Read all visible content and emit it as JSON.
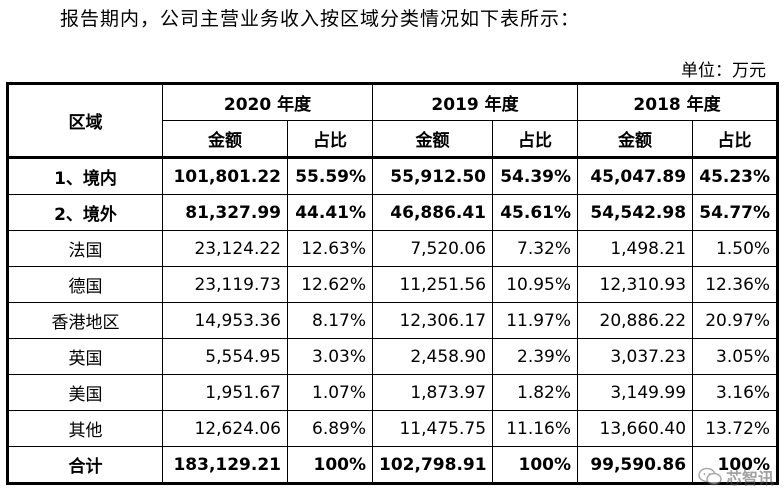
{
  "intro": "报告期内，公司主营业务收入按区域分类情况如下表所示：",
  "unit": "单位：万元",
  "table": {
    "region_header": "区域",
    "years": [
      "2020 年度",
      "2019 年度",
      "2018 年度"
    ],
    "sub_headers": {
      "amount": "金额",
      "ratio": "占比"
    },
    "rows": [
      {
        "region": "1、境内",
        "bold": true,
        "values": [
          "101,801.22",
          "55.59%",
          "55,912.50",
          "54.39%",
          "45,047.89",
          "45.23%"
        ]
      },
      {
        "region": "2、境外",
        "bold": true,
        "values": [
          "81,327.99",
          "44.41%",
          "46,886.41",
          "45.61%",
          "54,542.98",
          "54.77%"
        ]
      },
      {
        "region": "法国",
        "bold": false,
        "values": [
          "23,124.22",
          "12.63%",
          "7,520.06",
          "7.32%",
          "1,498.21",
          "1.50%"
        ]
      },
      {
        "region": "德国",
        "bold": false,
        "values": [
          "23,119.73",
          "12.62%",
          "11,251.56",
          "10.95%",
          "12,310.93",
          "12.36%"
        ]
      },
      {
        "region": "香港地区",
        "bold": false,
        "values": [
          "14,953.36",
          "8.17%",
          "12,306.17",
          "11.97%",
          "20,886.22",
          "20.97%"
        ]
      },
      {
        "region": "英国",
        "bold": false,
        "values": [
          "5,554.95",
          "3.03%",
          "2,458.90",
          "2.39%",
          "3,037.23",
          "3.05%"
        ]
      },
      {
        "region": "美国",
        "bold": false,
        "values": [
          "1,951.67",
          "1.07%",
          "1,873.97",
          "1.82%",
          "3,149.99",
          "3.16%"
        ]
      },
      {
        "region": "其他",
        "bold": false,
        "values": [
          "12,624.06",
          "6.89%",
          "11,475.75",
          "11.16%",
          "13,660.40",
          "13.72%"
        ]
      },
      {
        "region": "合计",
        "bold": true,
        "values": [
          "183,129.21",
          "100%",
          "102,798.91",
          "100%",
          "99,590.86",
          "100%"
        ]
      }
    ]
  },
  "watermark": {
    "text": "芯智讯",
    "icon": "wechat-icon"
  }
}
